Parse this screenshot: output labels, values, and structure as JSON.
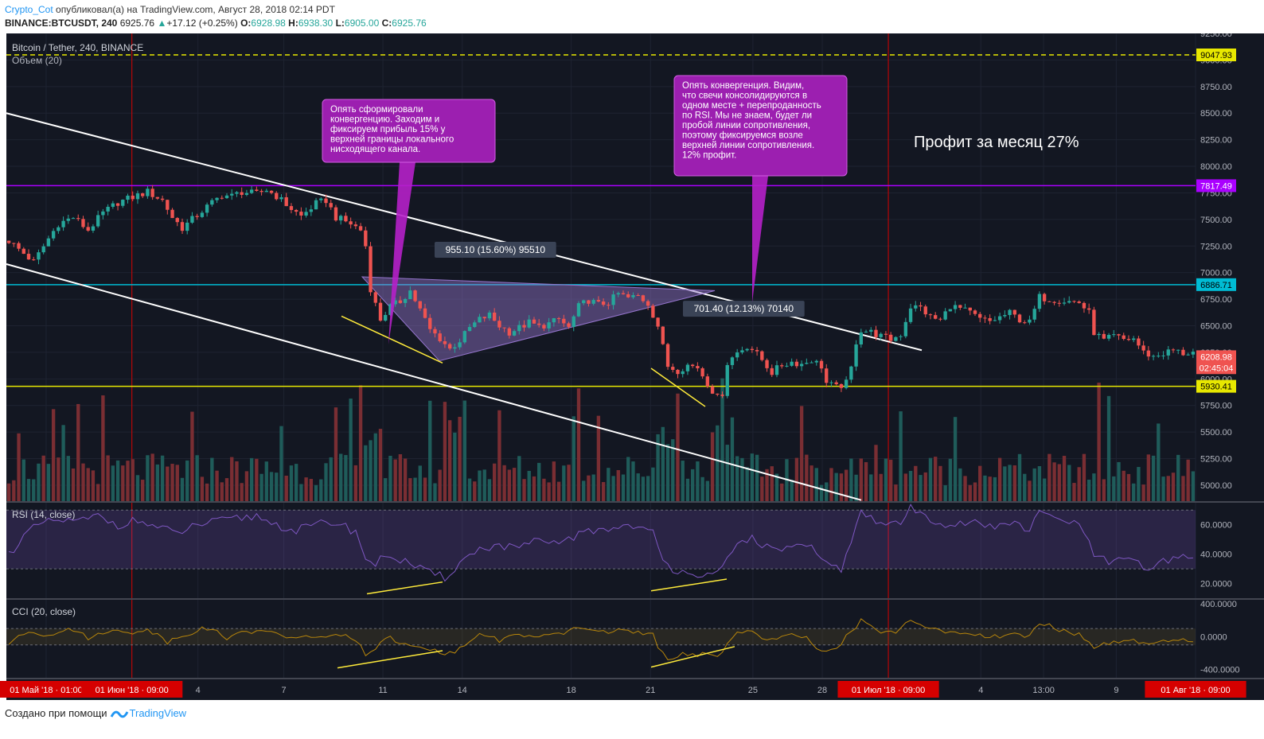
{
  "header": {
    "author": "Crypto_Cot",
    "published_text": "опубликовал(а) на TradingView.com, Август 28, 2018 02:14 PDT",
    "symbol": "BINANCE:BTCUSDT, 240",
    "last": "6925.76",
    "change": "+17.12 (+0.25%)",
    "o_label": "O:",
    "o": "6928.98",
    "h_label": "H:",
    "h": "6938.30",
    "l_label": "L:",
    "l": "6905.00",
    "c_label": "C:",
    "c": "6925.76"
  },
  "footer": {
    "created_with": "Создано при помощи",
    "brand": "TradingView"
  },
  "colors": {
    "background": "#131722",
    "up": "#26a69a",
    "down": "#ef5350",
    "cyan_line": "#00bcd4",
    "yellow_line": "#e8e800",
    "purple_line": "#9c27b0",
    "callout": "#9c27b0",
    "rsi": "#7e57c2",
    "cci": "#b8860b"
  },
  "chart_data": {
    "type": "candlestick",
    "pane_titles": {
      "main": "Bitcoin / Tether, 240, BINANCE",
      "volume": "Объем (20)",
      "rsi": "RSI (14, close)",
      "cci": "CCI (20, close)"
    },
    "y_axis_ticks": [
      "9250.00",
      "9000.00",
      "8750.00",
      "8500.00",
      "8250.00",
      "8000.00",
      "7750.00",
      "7500.00",
      "7250.00",
      "7000.00",
      "6750.00",
      "6500.00",
      "6250.00",
      "6000.00",
      "5750.00",
      "5500.00",
      "5250.00",
      "5000.00"
    ],
    "ylim": [
      4850,
      9250
    ],
    "rsi_ticks": [
      "60.0000",
      "40.0000",
      "20.0000"
    ],
    "rsi_ylim": [
      10,
      75
    ],
    "cci_ticks": [
      "400.0000",
      "0.0000",
      "-400.0000"
    ],
    "cci_ylim": [
      -500,
      450
    ],
    "x_axis_labels": [
      {
        "text": "01 Май '18 · 01:00",
        "highlight": true
      },
      {
        "text": "01 Июн '18 · 09:00",
        "highlight": true
      },
      {
        "text": "4"
      },
      {
        "text": "7"
      },
      {
        "text": "11"
      },
      {
        "text": "14"
      },
      {
        "text": "18"
      },
      {
        "text": "21"
      },
      {
        "text": "25"
      },
      {
        "text": "28"
      },
      {
        "text": "01 Июл '18 · 09:00",
        "highlight": true
      },
      {
        "text": "4"
      },
      {
        "text": "13:00"
      },
      {
        "text": "9"
      },
      {
        "text": "01 Авг '18 · 09:00",
        "highlight": true
      }
    ],
    "price_labels": [
      {
        "text": "9047.93",
        "value": 9047.93,
        "bg": "#e8e800",
        "fg": "#000000"
      },
      {
        "text": "7817.49",
        "value": 7817.49,
        "bg": "#aa00ff",
        "fg": "#ffffff"
      },
      {
        "text": "6886.71",
        "value": 6886.71,
        "bg": "#00bcd4",
        "fg": "#000000"
      },
      {
        "text": "6208.98",
        "value": 6208.98,
        "bg": "#ef5350",
        "fg": "#ffffff"
      },
      {
        "text": "02:45:04",
        "value": 6105,
        "bg": "#ef5350",
        "fg": "#ffffff"
      },
      {
        "text": "5930.41",
        "value": 5930.41,
        "bg": "#e8e800",
        "fg": "#000000"
      }
    ],
    "horizontal_lines": [
      {
        "value": 9047.93,
        "color": "#e8e800",
        "style": "dashed"
      },
      {
        "value": 7817.49,
        "color": "#aa00ff",
        "style": "solid"
      },
      {
        "value": 6886.71,
        "color": "#00bcd4",
        "style": "solid"
      },
      {
        "value": 5930.41,
        "color": "#e8e800",
        "style": "solid"
      }
    ],
    "callouts": [
      "Опять сформировали конвергенцию. Заходим и фиксируем прибыль 15% у верхней границы локального нисходящего канала.",
      "Опять конвергенция.  Видим, что свечи консолидируются в одном месте + перепроданность по RSI. Мы не знаем, будет ли пробой линии сопротивления, поэтому фиксируемся возле верхней линии сопротивления. 12% профит."
    ],
    "measure_labels": [
      "955.10 (15.60%) 95510",
      "701.40 (12.13%) 70140"
    ],
    "profit_text": "Профит за месяц 27%",
    "price_series": [
      [
        0,
        7300
      ],
      [
        3,
        7180
      ],
      [
        5,
        7100
      ],
      [
        8,
        7320
      ],
      [
        10,
        7460
      ],
      [
        13,
        7520
      ],
      [
        16,
        7400
      ],
      [
        19,
        7560
      ],
      [
        22,
        7660
      ],
      [
        25,
        7710
      ],
      [
        28,
        7760
      ],
      [
        31,
        7680
      ],
      [
        33,
        7520
      ],
      [
        35,
        7420
      ],
      [
        37,
        7500
      ],
      [
        40,
        7620
      ],
      [
        43,
        7730
      ],
      [
        45,
        7720
      ],
      [
        47,
        7760
      ],
      [
        50,
        7740
      ],
      [
        52,
        7780
      ],
      [
        54,
        7720
      ],
      [
        57,
        7600
      ],
      [
        59,
        7530
      ],
      [
        62,
        7650
      ],
      [
        64,
        7680
      ],
      [
        66,
        7520
      ],
      [
        69,
        7460
      ],
      [
        71,
        7400
      ],
      [
        72,
        7250
      ],
      [
        73,
        6850
      ],
      [
        74,
        6700
      ],
      [
        75,
        6560
      ],
      [
        77,
        6680
      ],
      [
        79,
        6730
      ],
      [
        81,
        6830
      ],
      [
        83,
        6650
      ],
      [
        85,
        6460
      ],
      [
        87,
        6380
      ],
      [
        89,
        6280
      ],
      [
        91,
        6360
      ],
      [
        93,
        6480
      ],
      [
        95,
        6560
      ],
      [
        97,
        6600
      ],
      [
        99,
        6500
      ],
      [
        101,
        6440
      ],
      [
        103,
        6480
      ],
      [
        105,
        6530
      ],
      [
        107,
        6490
      ],
      [
        109,
        6520
      ],
      [
        111,
        6560
      ],
      [
        113,
        6480
      ],
      [
        115,
        6680
      ],
      [
        117,
        6740
      ],
      [
        119,
        6700
      ],
      [
        121,
        6720
      ],
      [
        123,
        6800
      ],
      [
        125,
        6760
      ],
      [
        127,
        6780
      ],
      [
        129,
        6710
      ],
      [
        131,
        6500
      ],
      [
        132,
        6300
      ],
      [
        133,
        6120
      ],
      [
        135,
        6080
      ],
      [
        137,
        6130
      ],
      [
        139,
        6110
      ],
      [
        141,
        5960
      ],
      [
        143,
        5820
      ],
      [
        144,
        5870
      ],
      [
        145,
        6150
      ],
      [
        147,
        6250
      ],
      [
        149,
        6310
      ],
      [
        150,
        6280
      ],
      [
        152,
        6180
      ],
      [
        154,
        6060
      ],
      [
        156,
        6130
      ],
      [
        158,
        6160
      ],
      [
        160,
        6140
      ],
      [
        162,
        6180
      ],
      [
        164,
        6120
      ],
      [
        165,
        5960
      ],
      [
        167,
        5920
      ],
      [
        169,
        5960
      ],
      [
        170,
        6100
      ],
      [
        171,
        6350
      ],
      [
        172,
        6460
      ],
      [
        174,
        6440
      ],
      [
        176,
        6400
      ],
      [
        178,
        6370
      ],
      [
        180,
        6420
      ],
      [
        182,
        6680
      ],
      [
        184,
        6670
      ],
      [
        186,
        6580
      ],
      [
        188,
        6550
      ],
      [
        190,
        6690
      ],
      [
        192,
        6660
      ],
      [
        194,
        6620
      ],
      [
        196,
        6560
      ],
      [
        198,
        6540
      ],
      [
        200,
        6580
      ],
      [
        202,
        6620
      ],
      [
        204,
        6560
      ],
      [
        206,
        6530
      ],
      [
        208,
        6770
      ],
      [
        210,
        6750
      ],
      [
        212,
        6740
      ],
      [
        214,
        6730
      ],
      [
        216,
        6720
      ],
      [
        218,
        6620
      ],
      [
        219,
        6440
      ],
      [
        221,
        6360
      ],
      [
        223,
        6400
      ],
      [
        225,
        6370
      ],
      [
        227,
        6380
      ],
      [
        229,
        6250
      ],
      [
        231,
        6210
      ],
      [
        233,
        6240
      ],
      [
        235,
        6270
      ],
      [
        237,
        6240
      ],
      [
        239,
        6250
      ]
    ],
    "rsi_series": [
      [
        0,
        40
      ],
      [
        3,
        52
      ],
      [
        6,
        60
      ],
      [
        10,
        63
      ],
      [
        14,
        62
      ],
      [
        18,
        66
      ],
      [
        22,
        60
      ],
      [
        26,
        63
      ],
      [
        30,
        58
      ],
      [
        34,
        54
      ],
      [
        38,
        60
      ],
      [
        42,
        62
      ],
      [
        46,
        64
      ],
      [
        50,
        66
      ],
      [
        54,
        60
      ],
      [
        58,
        56
      ],
      [
        62,
        60
      ],
      [
        66,
        62
      ],
      [
        70,
        55
      ],
      [
        72,
        38
      ],
      [
        74,
        32
      ],
      [
        76,
        40
      ],
      [
        80,
        35
      ],
      [
        84,
        28
      ],
      [
        88,
        24
      ],
      [
        91,
        34
      ],
      [
        94,
        42
      ],
      [
        98,
        46
      ],
      [
        102,
        44
      ],
      [
        106,
        48
      ],
      [
        110,
        47
      ],
      [
        114,
        52
      ],
      [
        118,
        56
      ],
      [
        122,
        58
      ],
      [
        126,
        60
      ],
      [
        130,
        54
      ],
      [
        132,
        35
      ],
      [
        134,
        30
      ],
      [
        138,
        28
      ],
      [
        142,
        24
      ],
      [
        144,
        30
      ],
      [
        147,
        46
      ],
      [
        150,
        52
      ],
      [
        154,
        42
      ],
      [
        158,
        46
      ],
      [
        162,
        44
      ],
      [
        164,
        34
      ],
      [
        168,
        30
      ],
      [
        170,
        50
      ],
      [
        172,
        68
      ],
      [
        176,
        60
      ],
      [
        180,
        62
      ],
      [
        182,
        71
      ],
      [
        186,
        64
      ],
      [
        190,
        60
      ],
      [
        194,
        62
      ],
      [
        198,
        58
      ],
      [
        202,
        62
      ],
      [
        206,
        56
      ],
      [
        208,
        68
      ],
      [
        212,
        64
      ],
      [
        216,
        60
      ],
      [
        219,
        40
      ],
      [
        222,
        34
      ],
      [
        226,
        36
      ],
      [
        230,
        30
      ],
      [
        234,
        36
      ],
      [
        239,
        40
      ]
    ],
    "cci_series": [
      [
        0,
        -80
      ],
      [
        4,
        60
      ],
      [
        8,
        20
      ],
      [
        12,
        120
      ],
      [
        16,
        -20
      ],
      [
        20,
        80
      ],
      [
        24,
        40
      ],
      [
        28,
        100
      ],
      [
        32,
        -60
      ],
      [
        36,
        40
      ],
      [
        40,
        110
      ],
      [
        44,
        -10
      ],
      [
        48,
        60
      ],
      [
        52,
        90
      ],
      [
        56,
        -40
      ],
      [
        60,
        20
      ],
      [
        64,
        -20
      ],
      [
        68,
        40
      ],
      [
        71,
        -100
      ],
      [
        72,
        -250
      ],
      [
        74,
        -180
      ],
      [
        76,
        0
      ],
      [
        80,
        -80
      ],
      [
        84,
        -120
      ],
      [
        88,
        -220
      ],
      [
        91,
        -150
      ],
      [
        95,
        40
      ],
      [
        99,
        -40
      ],
      [
        103,
        30
      ],
      [
        107,
        -10
      ],
      [
        111,
        20
      ],
      [
        115,
        120
      ],
      [
        119,
        60
      ],
      [
        123,
        80
      ],
      [
        127,
        40
      ],
      [
        130,
        20
      ],
      [
        131,
        -150
      ],
      [
        133,
        -280
      ],
      [
        136,
        -200
      ],
      [
        140,
        -220
      ],
      [
        143,
        -260
      ],
      [
        146,
        10
      ],
      [
        149,
        100
      ],
      [
        153,
        -60
      ],
      [
        157,
        20
      ],
      [
        161,
        -20
      ],
      [
        164,
        -200
      ],
      [
        167,
        -130
      ],
      [
        170,
        60
      ],
      [
        172,
        200
      ],
      [
        176,
        40
      ],
      [
        180,
        80
      ],
      [
        182,
        220
      ],
      [
        186,
        90
      ],
      [
        190,
        40
      ],
      [
        194,
        60
      ],
      [
        198,
        -10
      ],
      [
        202,
        30
      ],
      [
        206,
        -10
      ],
      [
        208,
        180
      ],
      [
        212,
        80
      ],
      [
        216,
        30
      ],
      [
        219,
        -120
      ],
      [
        223,
        -80
      ],
      [
        227,
        -50
      ],
      [
        231,
        -100
      ],
      [
        235,
        -40
      ],
      [
        239,
        -60
      ]
    ]
  }
}
